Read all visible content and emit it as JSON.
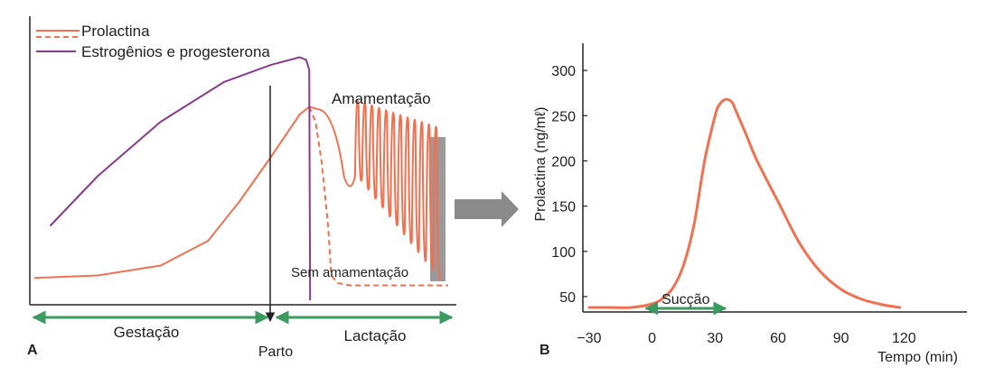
{
  "colors": {
    "prolactin": "#f07050",
    "hormones": "#8a3a8a",
    "phase_arrow": "#3a9a60",
    "axis": "#222222",
    "bar": "#9a9a9a",
    "connector_arrow": "#8a8a8a"
  },
  "chart_data": [
    {
      "type": "line",
      "panel_label": "A",
      "title": "",
      "legend": {
        "placement": "top-left",
        "entries": [
          {
            "label": "Prolactina",
            "style": "solid",
            "color": "#f07050"
          },
          {
            "label": "",
            "style": "dashed",
            "color": "#f07050"
          },
          {
            "label": "Estrogênios e progesterona",
            "style": "solid",
            "color": "#8a3a8a"
          }
        ]
      },
      "annotations": {
        "breastfeeding": "Amamentação",
        "no_breastfeeding": "Sem amamentação",
        "birth": "Parto"
      },
      "phases": [
        {
          "label": "Gestação"
        },
        {
          "label": "Lactação"
        }
      ],
      "series": [
        {
          "name": "Prolactina",
          "style": "solid",
          "x": [
            0,
            20,
            40,
            55,
            65,
            75,
            84,
            87,
            90
          ],
          "y": [
            0.09,
            0.1,
            0.14,
            0.24,
            0.4,
            0.58,
            0.75,
            0.78,
            0.77
          ]
        },
        {
          "name": "",
          "style": "dashed",
          "x": [
            87,
            89,
            91,
            93,
            94,
            96,
            100,
            131
          ],
          "y": [
            0.78,
            0.72,
            0.55,
            0.3,
            0.1,
            0.07,
            0.06,
            0.06
          ]
        },
        {
          "name": "Estrogênios e progesterona",
          "style": "solid",
          "x": [
            5,
            20,
            40,
            60,
            75,
            84,
            86,
            87,
            87.3
          ],
          "y": [
            0.3,
            0.5,
            0.72,
            0.88,
            0.95,
            0.98,
            0.97,
            0.93,
            0.0
          ]
        }
      ],
      "breastfeeding_cycles": {
        "count": 12,
        "peak_y_start": 0.78,
        "peak_y_end": 0.68,
        "trough_y_start": 0.5,
        "trough_y_end": 0.1
      },
      "xlabel": "",
      "ylabel": "",
      "grid": false
    },
    {
      "type": "line",
      "panel_label": "B",
      "title": "",
      "xlabel": "Tempo (min)",
      "ylabel": "Prolactina (ng/mℓ)",
      "xlim": [
        -33,
        150
      ],
      "ylim": [
        33,
        330
      ],
      "x_ticks": [
        -30,
        0,
        30,
        60,
        90,
        120
      ],
      "x_tick_labels": [
        "−30",
        "0",
        "30",
        "60",
        "90",
        "120"
      ],
      "y_ticks": [
        50,
        100,
        150,
        200,
        250,
        300
      ],
      "y_tick_labels": [
        "50",
        "100",
        "150",
        "200",
        "250",
        "300"
      ],
      "annotation": {
        "label": "Sucção",
        "x_start": -3,
        "x_end": 35
      },
      "series": [
        {
          "name": "",
          "x": [
            -30,
            -20,
            -10,
            0,
            5,
            10,
            15,
            20,
            25,
            30,
            32,
            35,
            38,
            40,
            45,
            50,
            60,
            70,
            80,
            90,
            100,
            110,
            118
          ],
          "y": [
            38,
            38,
            38,
            42,
            48,
            60,
            85,
            130,
            200,
            250,
            262,
            268,
            265,
            255,
            228,
            200,
            155,
            110,
            78,
            58,
            47,
            41,
            38
          ]
        }
      ],
      "grid": false
    }
  ]
}
